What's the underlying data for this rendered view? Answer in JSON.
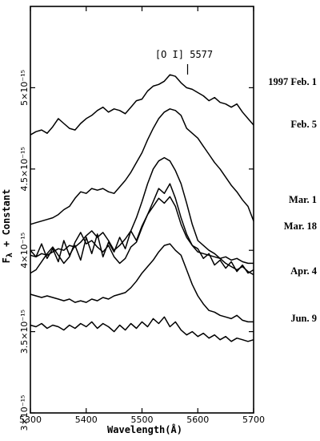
{
  "chart_data": {
    "type": "line",
    "title": "",
    "xlabel": "Wavelength(Å)",
    "ylabel": "F_λ + Constant",
    "xlim": [
      5300,
      5700
    ],
    "ylim": [
      3e-15,
      5.5e-15
    ],
    "x_ticks": [
      "5300",
      "5400",
      "5500",
      "5600",
      "5700"
    ],
    "y_ticks": [
      {
        "value": 3e-15,
        "label": "3×10⁻¹⁵"
      },
      {
        "value": 3.5e-15,
        "label": "3.5×10⁻¹⁵"
      },
      {
        "value": 4e-15,
        "label": "4×10⁻¹⁵"
      },
      {
        "value": 4.5e-15,
        "label": "4.5×10⁻¹⁵"
      },
      {
        "value": 5e-15,
        "label": "5×10⁻¹⁵"
      }
    ],
    "annotation": {
      "text": "[O I] 5577",
      "x": 5577
    },
    "series": [
      {
        "name": "1997 Feb. 1",
        "x": [
          5300,
          5310,
          5320,
          5330,
          5340,
          5350,
          5360,
          5370,
          5380,
          5390,
          5400,
          5410,
          5420,
          5430,
          5440,
          5450,
          5460,
          5470,
          5480,
          5490,
          5500,
          5510,
          5520,
          5530,
          5540,
          5550,
          5560,
          5570,
          5580,
          5590,
          5600,
          5610,
          5620,
          5630,
          5640,
          5650,
          5660,
          5670,
          5680,
          5690,
          5700
        ],
        "y": [
          4.71e-15,
          4.73e-15,
          4.74e-15,
          4.72e-15,
          4.76e-15,
          4.81e-15,
          4.78e-15,
          4.75e-15,
          4.74e-15,
          4.78e-15,
          4.81e-15,
          4.83e-15,
          4.86e-15,
          4.88e-15,
          4.85e-15,
          4.87e-15,
          4.86e-15,
          4.84e-15,
          4.88e-15,
          4.92e-15,
          4.93e-15,
          4.98e-15,
          5.01e-15,
          5.02e-15,
          5.04e-15,
          5.08e-15,
          5.07e-15,
          5.03e-15,
          5e-15,
          4.99e-15,
          4.97e-15,
          4.95e-15,
          4.92e-15,
          4.94e-15,
          4.91e-15,
          4.9e-15,
          4.88e-15,
          4.9e-15,
          4.85e-15,
          4.81e-15,
          4.77e-15
        ]
      },
      {
        "name": "Feb. 5",
        "x": [
          5300,
          5310,
          5320,
          5330,
          5340,
          5350,
          5360,
          5370,
          5380,
          5390,
          5400,
          5410,
          5420,
          5430,
          5440,
          5450,
          5460,
          5470,
          5480,
          5490,
          5500,
          5510,
          5520,
          5530,
          5540,
          5550,
          5560,
          5570,
          5580,
          5590,
          5600,
          5610,
          5620,
          5630,
          5640,
          5650,
          5660,
          5670,
          5680,
          5690,
          5700
        ],
        "y": [
          4.16e-15,
          4.17e-15,
          4.18e-15,
          4.19e-15,
          4.2e-15,
          4.22e-15,
          4.25e-15,
          4.27e-15,
          4.32e-15,
          4.36e-15,
          4.35e-15,
          4.38e-15,
          4.37e-15,
          4.38e-15,
          4.36e-15,
          4.35e-15,
          4.39e-15,
          4.43e-15,
          4.48e-15,
          4.54e-15,
          4.6e-15,
          4.68e-15,
          4.75e-15,
          4.81e-15,
          4.85e-15,
          4.87e-15,
          4.86e-15,
          4.83e-15,
          4.75e-15,
          4.72e-15,
          4.69e-15,
          4.64e-15,
          4.59e-15,
          4.54e-15,
          4.5e-15,
          4.45e-15,
          4.4e-15,
          4.36e-15,
          4.31e-15,
          4.27e-15,
          4.18e-15
        ]
      },
      {
        "name": "Mar. 1",
        "x": [
          5300,
          5310,
          5320,
          5330,
          5340,
          5350,
          5360,
          5370,
          5380,
          5390,
          5400,
          5410,
          5420,
          5430,
          5440,
          5450,
          5460,
          5470,
          5480,
          5490,
          5500,
          5510,
          5520,
          5530,
          5540,
          5550,
          5560,
          5570,
          5580,
          5590,
          5600,
          5610,
          5620,
          5630,
          5640,
          5650,
          5660,
          5670,
          5680,
          5690,
          5700
        ],
        "y": [
          3.97e-15,
          3.96e-15,
          3.98e-15,
          3.97e-15,
          3.99e-15,
          4.01e-15,
          4e-15,
          4.03e-15,
          4.02e-15,
          4.05e-15,
          4.09e-15,
          4.12e-15,
          4.08e-15,
          4.11e-15,
          4.06e-15,
          4e-15,
          4.03e-15,
          4.07e-15,
          4.12e-15,
          4.2e-15,
          4.3e-15,
          4.41e-15,
          4.5e-15,
          4.55e-15,
          4.57e-15,
          4.55e-15,
          4.49e-15,
          4.41e-15,
          4.29e-15,
          4.16e-15,
          4.06e-15,
          4.03e-15,
          4e-15,
          3.98e-15,
          3.95e-15,
          3.92e-15,
          3.9e-15,
          3.88e-15,
          3.9e-15,
          3.87e-15,
          3.85e-15
        ]
      },
      {
        "name": "Mar. 18",
        "x": [
          5300,
          5310,
          5320,
          5330,
          5340,
          5350,
          5360,
          5370,
          5380,
          5390,
          5400,
          5410,
          5420,
          5430,
          5440,
          5450,
          5460,
          5470,
          5480,
          5490,
          5500,
          5510,
          5520,
          5530,
          5540,
          5550,
          5560,
          5570,
          5580,
          5590,
          5600,
          5610,
          5620,
          5630,
          5640,
          5650,
          5660,
          5670,
          5680,
          5690,
          5700
        ],
        "y": [
          4e-15,
          3.96e-15,
          4.04e-15,
          3.95e-15,
          4.01e-15,
          3.93e-15,
          4.06e-15,
          3.97e-15,
          4.03e-15,
          3.94e-15,
          4.08e-15,
          3.98e-15,
          4.1e-15,
          3.96e-15,
          4.05e-15,
          3.99e-15,
          4.08e-15,
          4.01e-15,
          4.12e-15,
          4.06e-15,
          4.15e-15,
          4.22e-15,
          4.3e-15,
          4.38e-15,
          4.35e-15,
          4.41e-15,
          4.32e-15,
          4.2e-15,
          4.1e-15,
          4.03e-15,
          4.01e-15,
          3.95e-15,
          3.98e-15,
          3.91e-15,
          3.94e-15,
          3.89e-15,
          3.93e-15,
          3.87e-15,
          3.91e-15,
          3.86e-15,
          3.88e-15
        ]
      },
      {
        "name": "Apr. 4",
        "x": [
          5300,
          5310,
          5320,
          5330,
          5340,
          5350,
          5360,
          5370,
          5380,
          5390,
          5400,
          5410,
          5420,
          5430,
          5440,
          5450,
          5460,
          5470,
          5480,
          5490,
          5500,
          5510,
          5520,
          5530,
          5540,
          5550,
          5560,
          5570,
          5580,
          5590,
          5600,
          5610,
          5620,
          5630,
          5640,
          5650,
          5660,
          5670,
          5680,
          5690,
          5700
        ],
        "y": [
          3.86e-15,
          3.88e-15,
          3.93e-15,
          3.98e-15,
          4.02e-15,
          3.97e-15,
          3.92e-15,
          3.96e-15,
          4.05e-15,
          4.11e-15,
          4.04e-15,
          4.06e-15,
          4.02e-15,
          3.99e-15,
          4.03e-15,
          3.96e-15,
          3.92e-15,
          3.95e-15,
          4.02e-15,
          4.05e-15,
          4.14e-15,
          4.22e-15,
          4.27e-15,
          4.32e-15,
          4.29e-15,
          4.33e-15,
          4.27e-15,
          4.16e-15,
          4.08e-15,
          4.03e-15,
          3.99e-15,
          3.98e-15,
          3.97e-15,
          3.96e-15,
          3.95e-15,
          3.96e-15,
          3.94e-15,
          3.95e-15,
          3.93e-15,
          3.92e-15,
          3.92e-15
        ]
      },
      {
        "name": "Jun. 9",
        "x": [
          5300,
          5310,
          5320,
          5330,
          5340,
          5350,
          5360,
          5370,
          5380,
          5390,
          5400,
          5410,
          5420,
          5430,
          5440,
          5450,
          5460,
          5470,
          5480,
          5490,
          5500,
          5510,
          5520,
          5530,
          5540,
          5550,
          5560,
          5570,
          5580,
          5590,
          5600,
          5610,
          5620,
          5630,
          5640,
          5650,
          5660,
          5670,
          5680,
          5690,
          5700
        ],
        "y": [
          3.73e-15,
          3.72e-15,
          3.71e-15,
          3.72e-15,
          3.71e-15,
          3.7e-15,
          3.69e-15,
          3.7e-15,
          3.68e-15,
          3.69e-15,
          3.68e-15,
          3.7e-15,
          3.69e-15,
          3.71e-15,
          3.7e-15,
          3.72e-15,
          3.73e-15,
          3.74e-15,
          3.77e-15,
          3.81e-15,
          3.86e-15,
          3.9e-15,
          3.94e-15,
          3.99e-15,
          4.03e-15,
          4.04e-15,
          4e-15,
          3.97e-15,
          3.88e-15,
          3.79e-15,
          3.72e-15,
          3.67e-15,
          3.63e-15,
          3.62e-15,
          3.6e-15,
          3.59e-15,
          3.58e-15,
          3.6e-15,
          3.57e-15,
          3.56e-15,
          3.56e-15
        ]
      },
      {
        "name": "",
        "x": [
          5300,
          5310,
          5320,
          5330,
          5340,
          5350,
          5360,
          5370,
          5380,
          5390,
          5400,
          5410,
          5420,
          5430,
          5440,
          5450,
          5460,
          5470,
          5480,
          5490,
          5500,
          5510,
          5520,
          5530,
          5540,
          5550,
          5560,
          5570,
          5580,
          5590,
          5600,
          5610,
          5620,
          5630,
          5640,
          5650,
          5660,
          5670,
          5680,
          5690,
          5700
        ],
        "y": [
          3.54e-15,
          3.53e-15,
          3.55e-15,
          3.52e-15,
          3.54e-15,
          3.53e-15,
          3.51e-15,
          3.54e-15,
          3.52e-15,
          3.55e-15,
          3.53e-15,
          3.56e-15,
          3.52e-15,
          3.55e-15,
          3.53e-15,
          3.5e-15,
          3.54e-15,
          3.51e-15,
          3.55e-15,
          3.52e-15,
          3.56e-15,
          3.53e-15,
          3.58e-15,
          3.55e-15,
          3.59e-15,
          3.53e-15,
          3.56e-15,
          3.51e-15,
          3.48e-15,
          3.5e-15,
          3.47e-15,
          3.49e-15,
          3.46e-15,
          3.48e-15,
          3.45e-15,
          3.47e-15,
          3.44e-15,
          3.46e-15,
          3.45e-15,
          3.44e-15,
          3.45e-15
        ]
      }
    ],
    "date_labels": [
      "1997 Feb. 1",
      "Feb. 5",
      "Mar. 1",
      "Mar. 18",
      "Apr. 4",
      "Jun. 9"
    ]
  }
}
